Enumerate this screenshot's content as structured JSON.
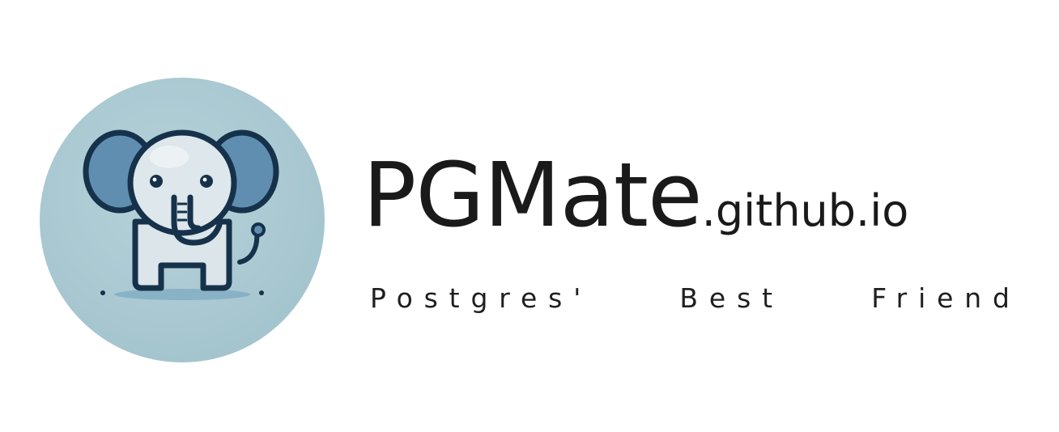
{
  "logo": {
    "icon": "elephant-mascot-icon",
    "circle_color": "#a9c8d1",
    "outline_color": "#16324a",
    "ear_color": "#5f8eb0",
    "body_color": "#dbe5ea"
  },
  "brand": {
    "name": "PGMate",
    "domain": ".github.io"
  },
  "tagline": {
    "words": [
      "Postgres'",
      "Best",
      "Friend"
    ]
  }
}
